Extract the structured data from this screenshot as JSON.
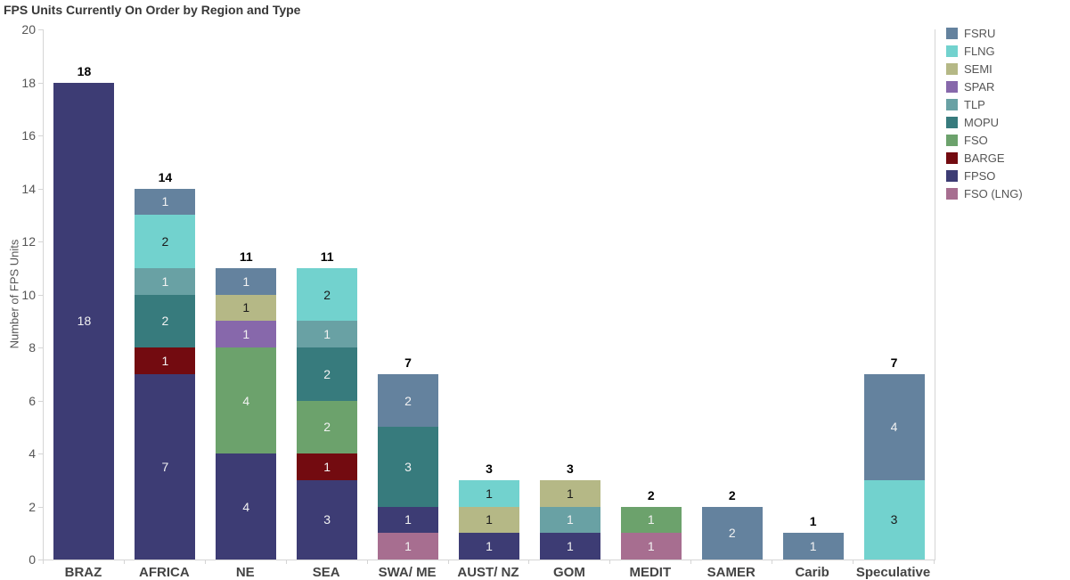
{
  "title": "FPS Units Currently On Order by Region and Type",
  "y_axis": {
    "label": "Number of FPS Units"
  },
  "chart_data": {
    "type": "bar",
    "stacked": true,
    "title": "FPS Units Currently On Order by Region and Type",
    "xlabel": "",
    "ylabel": "Number of FPS Units",
    "ylim": [
      0,
      20
    ],
    "y_ticks": [
      0,
      2,
      4,
      6,
      8,
      10,
      12,
      14,
      16,
      18,
      20
    ],
    "grid": false,
    "legend_position": "top-right",
    "categories": [
      "BRAZ",
      "AFRICA",
      "NE",
      "SEA",
      "SWA/ ME",
      "AUST/ NZ",
      "GOM",
      "MEDIT",
      "SAMER",
      "Carib",
      "Speculative"
    ],
    "totals": [
      18,
      14,
      11,
      11,
      7,
      3,
      3,
      2,
      2,
      1,
      7
    ],
    "series": [
      {
        "name": "FSRU",
        "color": "#64829e",
        "label_color": "#f2f2f2",
        "values": [
          0,
          1,
          1,
          0,
          2,
          0,
          0,
          0,
          2,
          1,
          4
        ]
      },
      {
        "name": "FLNG",
        "color": "#72d2ce",
        "label_color": "#1a1a1a",
        "values": [
          0,
          2,
          0,
          2,
          0,
          1,
          0,
          0,
          0,
          0,
          3
        ]
      },
      {
        "name": "SEMI",
        "color": "#b5b886",
        "label_color": "#1a1a1a",
        "values": [
          0,
          0,
          1,
          0,
          0,
          1,
          1,
          0,
          0,
          0,
          0
        ]
      },
      {
        "name": "SPAR",
        "color": "#8768ab",
        "label_color": "#f2f2f2",
        "values": [
          0,
          0,
          1,
          0,
          0,
          0,
          0,
          0,
          0,
          0,
          0
        ]
      },
      {
        "name": "TLP",
        "color": "#69a1a4",
        "label_color": "#f2f2f2",
        "values": [
          0,
          1,
          0,
          1,
          0,
          0,
          1,
          0,
          0,
          0,
          0
        ]
      },
      {
        "name": "MOPU",
        "color": "#377b7d",
        "label_color": "#f2f2f2",
        "values": [
          0,
          2,
          0,
          2,
          3,
          0,
          0,
          0,
          0,
          0,
          0
        ]
      },
      {
        "name": "FSO",
        "color": "#6ca26c",
        "label_color": "#f2f2f2",
        "values": [
          0,
          0,
          4,
          2,
          0,
          0,
          0,
          1,
          0,
          0,
          0
        ]
      },
      {
        "name": "BARGE",
        "color": "#730b10",
        "label_color": "#f2f2f2",
        "values": [
          0,
          1,
          0,
          1,
          0,
          0,
          0,
          0,
          0,
          0,
          0
        ]
      },
      {
        "name": "FPSO",
        "color": "#3d3c74",
        "label_color": "#f2f2f2",
        "values": [
          18,
          7,
          4,
          3,
          1,
          1,
          1,
          0,
          0,
          0,
          0
        ]
      },
      {
        "name": "FSO (LNG)",
        "color": "#a76e90",
        "label_color": "#f2f2f2",
        "values": [
          0,
          0,
          0,
          0,
          1,
          0,
          0,
          1,
          0,
          0,
          0
        ]
      }
    ]
  }
}
